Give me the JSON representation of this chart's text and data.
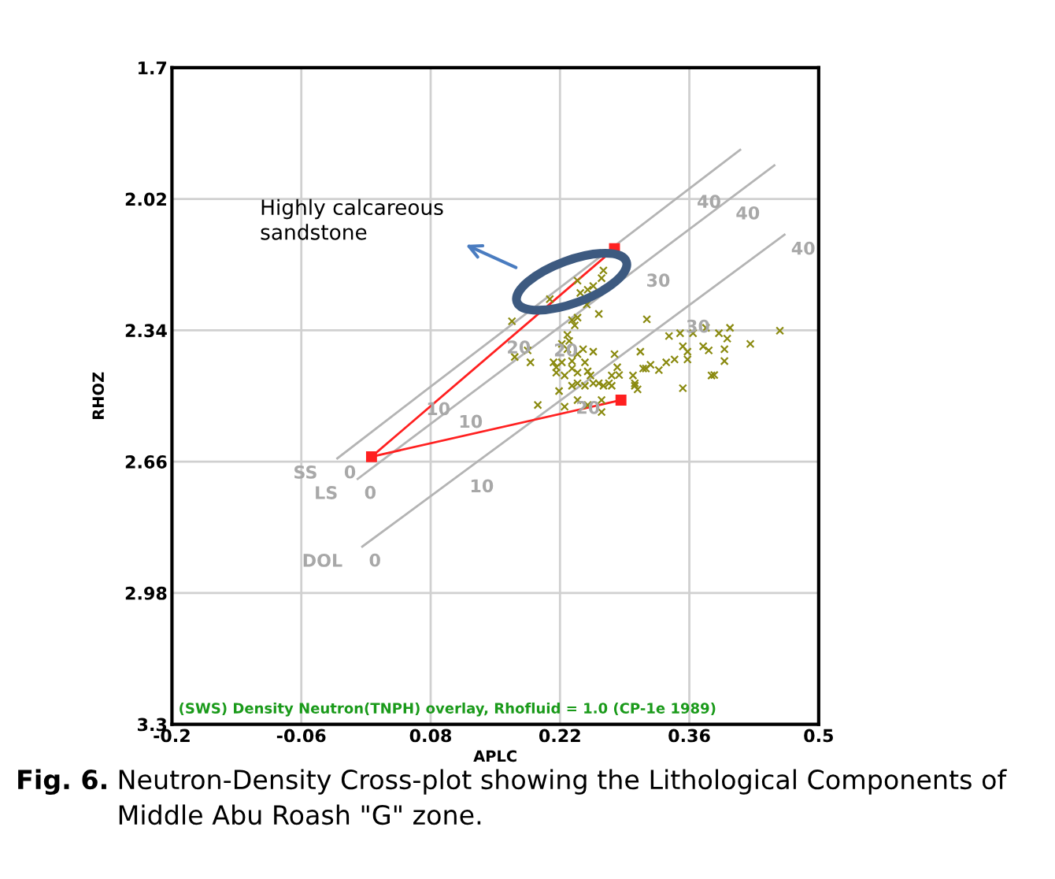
{
  "chart_data": {
    "type": "scatter",
    "xlabel": "APLC",
    "ylabel": "RHOZ",
    "xlim": [
      -0.2,
      0.5
    ],
    "xticks": [
      -0.2,
      -0.06,
      0.08,
      0.22,
      0.36,
      0.5
    ],
    "ylim": [
      3.3,
      1.7
    ],
    "yticks": [
      1.7,
      2.02,
      2.34,
      2.66,
      2.98,
      3.3
    ],
    "grid": true,
    "series": [
      {
        "type": "scatter",
        "color": "#8a8a10",
        "marker": "cross",
        "x": [
          0.239,
          0.267,
          0.265,
          0.256,
          0.25,
          0.242,
          0.209,
          0.249,
          0.262,
          0.233,
          0.239,
          0.168,
          0.236,
          0.228,
          0.23,
          0.222,
          0.228,
          0.213,
          0.222,
          0.233,
          0.239,
          0.245,
          0.256,
          0.247,
          0.216,
          0.225,
          0.239,
          0.253,
          0.279,
          0.282,
          0.276,
          0.262,
          0.171,
          0.188,
          0.185,
          0.314,
          0.338,
          0.35,
          0.364,
          0.378,
          0.392,
          0.404,
          0.401,
          0.426,
          0.458,
          0.353,
          0.358,
          0.375,
          0.381,
          0.398,
          0.307,
          0.335,
          0.344,
          0.358,
          0.398,
          0.299,
          0.31,
          0.318,
          0.327,
          0.384,
          0.301,
          0.256,
          0.273,
          0.216,
          0.233,
          0.25,
          0.284,
          0.313,
          0.353,
          0.387,
          0.219,
          0.233,
          0.239,
          0.247,
          0.267,
          0.276,
          0.301,
          0.304,
          0.196,
          0.225,
          0.239,
          0.25,
          0.265,
          0.265
        ],
        "values": [
          2.219,
          2.194,
          2.213,
          2.232,
          2.241,
          2.249,
          2.264,
          2.277,
          2.3,
          2.315,
          2.309,
          2.318,
          2.328,
          2.351,
          2.366,
          2.373,
          2.386,
          2.418,
          2.418,
          2.415,
          2.398,
          2.386,
          2.392,
          2.418,
          2.443,
          2.45,
          2.443,
          2.45,
          2.398,
          2.43,
          2.45,
          2.469,
          2.405,
          2.418,
          2.389,
          2.313,
          2.354,
          2.347,
          2.347,
          2.334,
          2.347,
          2.334,
          2.36,
          2.373,
          2.341,
          2.379,
          2.392,
          2.379,
          2.389,
          2.386,
          2.392,
          2.418,
          2.411,
          2.411,
          2.415,
          2.45,
          2.433,
          2.424,
          2.437,
          2.45,
          2.469,
          2.469,
          2.469,
          2.43,
          2.433,
          2.44,
          2.449,
          2.433,
          2.481,
          2.449,
          2.488,
          2.475,
          2.469,
          2.475,
          2.475,
          2.475,
          2.475,
          2.484,
          2.522,
          2.526,
          2.51,
          2.522,
          2.51,
          2.539
        ]
      },
      {
        "type": "line",
        "name": "SS",
        "color": "#b4b4b4",
        "marker": "none",
        "x": [
          -0.021,
          0.068,
          0.155,
          0.361,
          0.415
        ],
        "values": [
          2.652,
          2.498,
          2.348,
          1.993,
          1.9
        ]
      },
      {
        "type": "line",
        "name": "LS",
        "color": "#b4b4b4",
        "marker": "none",
        "x": [
          0.001,
          0.103,
          0.206,
          0.306,
          0.403,
          0.452
        ],
        "values": [
          2.702,
          2.529,
          2.355,
          2.185,
          2.021,
          1.938
        ]
      },
      {
        "type": "line",
        "name": "DOL",
        "color": "#b4b4b4",
        "marker": "none",
        "x": [
          0.006,
          0.115,
          0.23,
          0.349,
          0.463
        ],
        "values": [
          2.867,
          2.686,
          2.495,
          2.297,
          2.107
        ]
      },
      {
        "type": "line",
        "color": "#ff2020",
        "marker": "square",
        "x": [
          0.279,
          0.016,
          0.286
        ],
        "values": [
          2.141,
          2.648,
          2.51
        ]
      }
    ],
    "annotations": [
      "Highly calcareous sandstone",
      {
        "text": "0",
        "x": -0.021,
        "y": 2.652
      },
      {
        "text": "10",
        "x": 0.068,
        "y": 2.498
      },
      {
        "text": "20",
        "x": 0.155,
        "y": 2.348
      },
      {
        "text": "40",
        "x": 0.361,
        "y": 1.993
      },
      {
        "text": "0",
        "x": 0.001,
        "y": 2.702
      },
      {
        "text": "10",
        "x": 0.103,
        "y": 2.529
      },
      {
        "text": "20",
        "x": 0.206,
        "y": 2.355
      },
      {
        "text": "30",
        "x": 0.306,
        "y": 2.185
      },
      {
        "text": "40",
        "x": 0.403,
        "y": 2.021
      },
      {
        "text": "0",
        "x": 0.006,
        "y": 2.867
      },
      {
        "text": "10",
        "x": 0.115,
        "y": 2.686
      },
      {
        "text": "20",
        "x": 0.23,
        "y": 2.495
      },
      {
        "text": "30",
        "x": 0.349,
        "y": 2.297
      },
      {
        "text": "40",
        "x": 0.463,
        "y": 2.107
      },
      "(SWS) Density Neutron(TNPH) overlay, Rhofluid = 1.0 (CP-1e 1989)",
      "Fig. 6.",
      "Neutron-Density Cross-plot showing the Lithological Components of Middle Abu Roash \"G\" zone."
    ]
  }
}
